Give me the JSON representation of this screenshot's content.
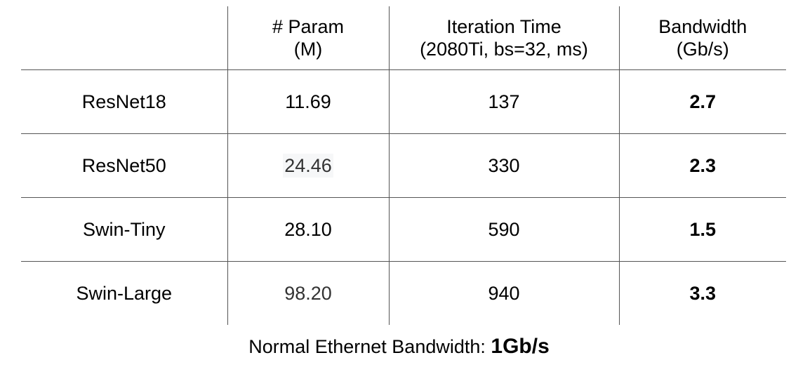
{
  "chart_data": {
    "type": "table",
    "columns": [
      {
        "line1": "",
        "line2": ""
      },
      {
        "line1": "# Param",
        "line2": "(M)"
      },
      {
        "line1": "Iteration Time",
        "line2": "(2080Ti, bs=32, ms)"
      },
      {
        "line1": "Bandwidth",
        "line2": "(Gb/s)"
      }
    ],
    "rows": [
      {
        "model": "ResNet18",
        "params": "11.69",
        "iteration_time": "137",
        "bandwidth": "2.7"
      },
      {
        "model": "ResNet50",
        "params": "24.46",
        "iteration_time": "330",
        "bandwidth": "2.3"
      },
      {
        "model": "Swin-Tiny",
        "params": "28.10",
        "iteration_time": "590",
        "bandwidth": "1.5"
      },
      {
        "model": "Swin-Large",
        "params": "98.20",
        "iteration_time": "940",
        "bandwidth": "3.3"
      }
    ]
  },
  "footnote": {
    "label": "Normal Ethernet Bandwidth: ",
    "value": "1Gb/s"
  }
}
